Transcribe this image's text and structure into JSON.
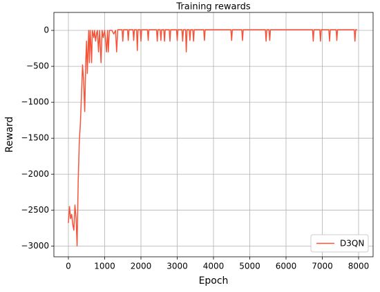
{
  "chart_data": {
    "type": "line",
    "title": "Training rewards",
    "x_label": "Epoch",
    "y_label": "Reward",
    "x": [
      0,
      30,
      60,
      90,
      120,
      150,
      180,
      210,
      240,
      270,
      300,
      330,
      360,
      390,
      420,
      450,
      480,
      500,
      520,
      540,
      560,
      580,
      600,
      620,
      640,
      660,
      700,
      720,
      750,
      780,
      800,
      830,
      860,
      900,
      930,
      960,
      1000,
      1050,
      1080,
      1100,
      1130,
      1200,
      1250,
      1300,
      1330,
      1360,
      1480,
      1500,
      1520,
      1630,
      1650,
      1670,
      1780,
      1800,
      1820,
      1880,
      1900,
      1920,
      1980,
      2000,
      2020,
      2180,
      2200,
      2220,
      2430,
      2450,
      2470,
      2530,
      2550,
      2570,
      2630,
      2650,
      2670,
      2780,
      2800,
      2820,
      2980,
      3000,
      3020,
      3130,
      3150,
      3170,
      3230,
      3250,
      3270,
      3330,
      3350,
      3370,
      3430,
      3450,
      3470,
      3730,
      3750,
      3770,
      4480,
      4500,
      4520,
      4780,
      4800,
      4820,
      5430,
      5450,
      5470,
      5530,
      5550,
      5570,
      6730,
      6750,
      6770,
      6930,
      6950,
      6970,
      7180,
      7200,
      7220,
      7380,
      7400,
      7420,
      7880,
      7900,
      7920,
      7960
    ],
    "series": [
      {
        "name": "D3QN",
        "color": "#f4553a",
        "values": [
          -2680,
          -2450,
          -2620,
          -2560,
          -2700,
          -2780,
          -2430,
          -2600,
          -3000,
          -2100,
          -1550,
          -1300,
          -900,
          -480,
          -700,
          -1130,
          -400,
          -150,
          -600,
          -300,
          0,
          -450,
          0,
          -200,
          -450,
          0,
          -100,
          0,
          -150,
          -30,
          0,
          -300,
          0,
          -450,
          0,
          -100,
          0,
          -300,
          0,
          -300,
          0,
          0,
          -50,
          0,
          -300,
          10,
          10,
          -150,
          10,
          10,
          -140,
          10,
          10,
          -140,
          10,
          10,
          -280,
          10,
          10,
          -150,
          10,
          10,
          -140,
          10,
          10,
          -150,
          10,
          10,
          -140,
          10,
          10,
          -150,
          10,
          10,
          -150,
          10,
          10,
          -140,
          10,
          10,
          -150,
          10,
          10,
          -300,
          10,
          10,
          -140,
          10,
          10,
          -150,
          10,
          10,
          -140,
          10,
          10,
          -140,
          10,
          10,
          -140,
          10,
          10,
          -150,
          10,
          10,
          -140,
          10,
          10,
          -150,
          10,
          10,
          -150,
          10,
          10,
          -150,
          10,
          10,
          -140,
          10,
          10,
          -150,
          10,
          10
        ]
      }
    ],
    "xlim": [
      -400,
      8400
    ],
    "ylim": [
      -3150,
      250
    ],
    "xticks": [
      0,
      1000,
      2000,
      3000,
      4000,
      5000,
      6000,
      7000,
      8000
    ],
    "yticks": [
      {
        "value": -3000,
        "label": "−3000"
      },
      {
        "value": -2500,
        "label": "−2500"
      },
      {
        "value": -2000,
        "label": "−2000"
      },
      {
        "value": -1500,
        "label": "−1500"
      },
      {
        "value": -1000,
        "label": "−1000"
      },
      {
        "value": -500,
        "label": "−500"
      },
      0
    ],
    "grid": true,
    "legend": "lower right"
  }
}
